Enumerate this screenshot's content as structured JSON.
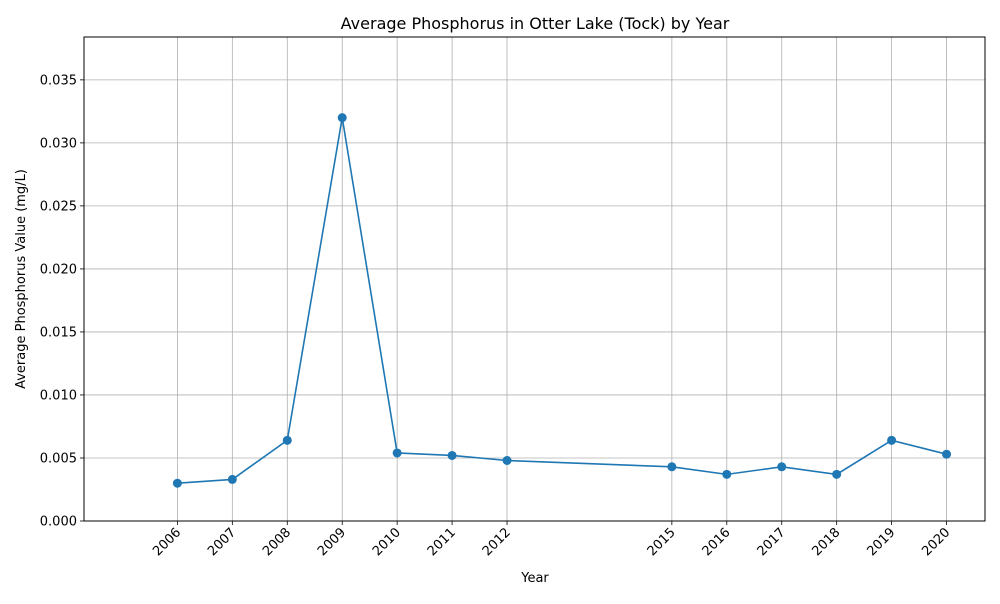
{
  "chart_data": {
    "type": "line",
    "title": "Average Phosphorus in Otter Lake (Tock) by Year",
    "xlabel": "Year",
    "ylabel": "Average Phosphorus Value (mg/L)",
    "x": [
      2006,
      2007,
      2008,
      2009,
      2010,
      2011,
      2012,
      2015,
      2016,
      2017,
      2018,
      2019,
      2020
    ],
    "series": [
      {
        "values": [
          0.003,
          0.0033,
          0.0064,
          0.032,
          0.0054,
          0.0052,
          0.0048,
          0.0043,
          0.0037,
          0.0043,
          0.0037,
          0.0064,
          0.0053
        ],
        "color": "#1f77b4",
        "marker": "circle"
      }
    ],
    "xticks": [
      "2006",
      "2007",
      "2008",
      "2009",
      "2010",
      "2011",
      "2012",
      "2015",
      "2016",
      "2017",
      "2018",
      "2019",
      "2020"
    ],
    "yticks": [
      "0.000",
      "0.005",
      "0.010",
      "0.015",
      "0.020",
      "0.025",
      "0.030",
      "0.035"
    ],
    "xlim": [
      2004.3,
      2020.7
    ],
    "ylim": [
      0,
      0.0384
    ],
    "grid": true,
    "x_tick_rotation": "45 degrees"
  }
}
